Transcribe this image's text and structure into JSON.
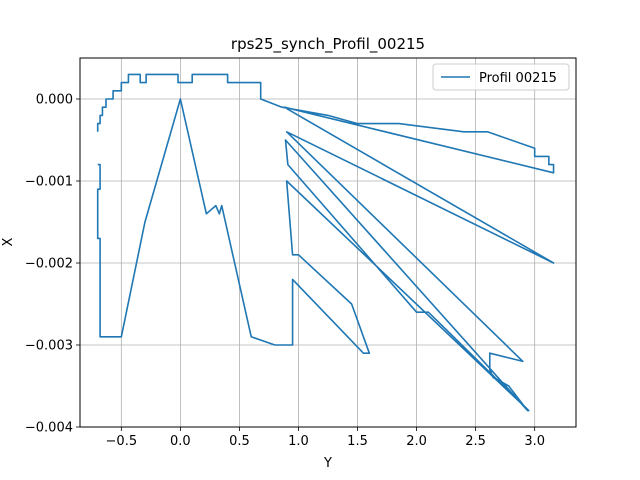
{
  "chart_data": {
    "type": "line",
    "title": "rps25_synch_Profil_00215",
    "xlabel": "Y",
    "ylabel": "X",
    "xlim": [
      -0.85,
      3.35
    ],
    "ylim": [
      -0.004,
      0.0005
    ],
    "xticks": [
      -0.5,
      0.0,
      0.5,
      1.0,
      1.5,
      2.0,
      2.5,
      3.0
    ],
    "xtick_labels": [
      "−0.5",
      "0.0",
      "0.5",
      "1.0",
      "1.5",
      "2.0",
      "2.5",
      "3.0"
    ],
    "yticks": [
      0.0,
      -0.001,
      -0.002,
      -0.003,
      -0.004
    ],
    "ytick_labels": [
      "0.000",
      "−0.001",
      "−0.002",
      "−0.003",
      "−0.004"
    ],
    "grid": true,
    "legend_position": "top-right",
    "colors": {
      "series": "#1f77b4",
      "grid": "#b0b0b0",
      "axes": "#000000"
    },
    "series": [
      {
        "name": "Profil 00215",
        "x": [
          -0.7,
          -0.7,
          -0.68,
          -0.68,
          -0.66,
          -0.66,
          -0.63,
          -0.63,
          -0.57,
          -0.57,
          -0.5,
          -0.5,
          -0.44,
          -0.44,
          -0.34,
          -0.34,
          -0.29,
          -0.29,
          -0.02,
          -0.02,
          0.1,
          0.1,
          0.4,
          0.4,
          0.68,
          0.68,
          0.86,
          1.25,
          1.5,
          1.85,
          2.4,
          2.6,
          3.0,
          3.0,
          3.12,
          3.12,
          3.16,
          3.16,
          0.88,
          0.88,
          3.16,
          3.16,
          0.9,
          0.9,
          2.9,
          2.9,
          2.62,
          2.62,
          2.65,
          2.66,
          2.78,
          2.78,
          2.94,
          2.94,
          0.89,
          0.89,
          0.91,
          0.91,
          2.0,
          2.1,
          2.95,
          2.95,
          0.9,
          0.9,
          0.95,
          0.95,
          1.0,
          1.45,
          1.6,
          1.55,
          0.95,
          0.95,
          0.8,
          0.6,
          0.35,
          0.33,
          0.3,
          0.22,
          0.0,
          0.0,
          -0.3,
          -0.5,
          -0.68,
          -0.68,
          -0.7,
          -0.7,
          -0.68,
          -0.68,
          -0.7
        ],
        "y": [
          -0.0004,
          -0.0003,
          -0.0003,
          -0.0002,
          -0.0002,
          -0.0001,
          -0.0001,
          0.0,
          0.0,
          0.0001,
          0.0001,
          0.0002,
          0.0002,
          0.0003,
          0.0003,
          0.0002,
          0.0002,
          0.0003,
          0.0003,
          0.0002,
          0.0002,
          0.0003,
          0.0003,
          0.0002,
          0.0002,
          0.0,
          -0.0001,
          -0.0002,
          -0.0003,
          -0.0003,
          -0.0004,
          -0.0004,
          -0.0006,
          -0.0007,
          -0.0007,
          -0.0008,
          -0.0008,
          -0.0009,
          -0.0001,
          -0.0001,
          -0.002,
          -0.002,
          -0.0004,
          -0.0004,
          -0.0032,
          -0.0032,
          -0.0031,
          -0.0033,
          -0.0034,
          -0.0034,
          -0.0035,
          -0.0035,
          -0.0038,
          -0.0038,
          -0.0005,
          -0.0005,
          -0.0008,
          -0.0008,
          -0.0026,
          -0.0026,
          -0.0038,
          -0.0038,
          -0.001,
          -0.001,
          -0.0019,
          -0.0019,
          -0.0019,
          -0.0025,
          -0.0031,
          -0.0031,
          -0.0022,
          -0.003,
          -0.003,
          -0.0029,
          -0.0013,
          -0.0014,
          -0.0013,
          -0.0014,
          0.0,
          0.0,
          -0.0015,
          -0.0029,
          -0.0029,
          -0.0017,
          -0.0017,
          -0.0011,
          -0.0011,
          -0.0008,
          -0.0008
        ]
      }
    ]
  }
}
